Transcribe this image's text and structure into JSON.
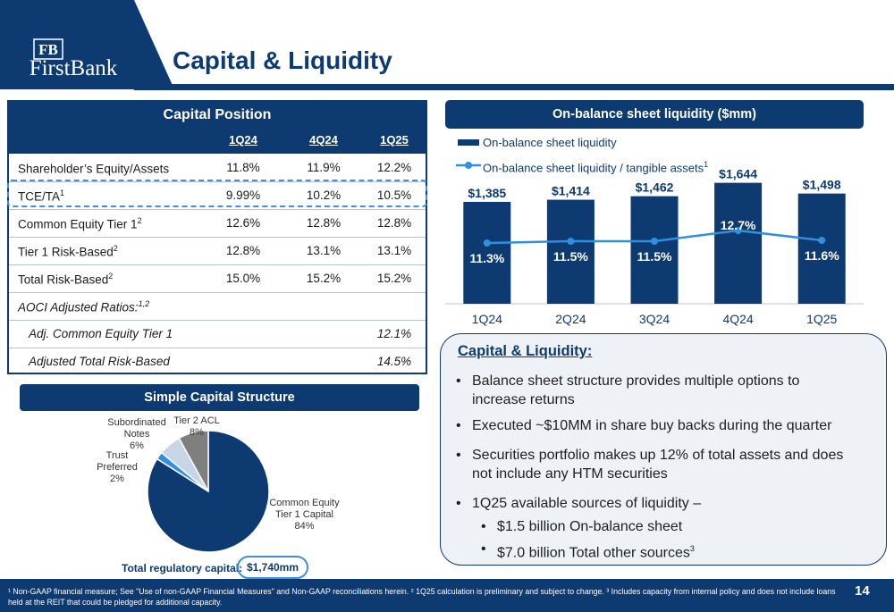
{
  "logo": {
    "monogram": "FB",
    "name": "FirstBank"
  },
  "title": "Capital & Liquidity",
  "capital_position": {
    "header": "Capital Position",
    "columns": [
      "1Q24",
      "4Q24",
      "1Q25"
    ],
    "rows": [
      {
        "label": "Shareholder’s Equity/Assets",
        "sup": "",
        "v": [
          "11.8%",
          "11.9%",
          "12.2%"
        ]
      },
      {
        "label": "TCE/TA",
        "sup": "1",
        "v": [
          "9.99%",
          "10.2%",
          "10.5%"
        ]
      },
      {
        "label": "Common Equity Tier 1",
        "sup": "2",
        "v": [
          "12.6%",
          "12.8%",
          "12.8%"
        ]
      },
      {
        "label": "Tier 1 Risk-Based",
        "sup": "2",
        "v": [
          "12.8%",
          "13.1%",
          "13.1%"
        ]
      },
      {
        "label": "Total Risk-Based",
        "sup": "2",
        "v": [
          "15.0%",
          "15.2%",
          "15.2%"
        ]
      },
      {
        "label": "AOCI Adjusted Ratios:",
        "sup": "1,2",
        "v": [
          "",
          "",
          ""
        ]
      },
      {
        "label": "Adj. Common Equity Tier 1",
        "sup": "",
        "v": [
          "",
          "",
          "12.1%"
        ]
      },
      {
        "label": "Adjusted Total Risk-Based",
        "sup": "",
        "v": [
          "",
          "",
          "14.5%"
        ]
      }
    ]
  },
  "simple_capital": {
    "header": "Simple Capital Structure",
    "slices": [
      {
        "label": "Common Equity Tier 1 Capital",
        "pct": "84%",
        "value": 84,
        "color": "#0d3a70"
      },
      {
        "label": "Trust Preferred",
        "pct": "2%",
        "value": 2,
        "color": "#2f8fe0"
      },
      {
        "label": "Subordinated Notes",
        "pct": "6%",
        "value": 6,
        "color": "#c9d5e6"
      },
      {
        "label": "Tier 2 ACL",
        "pct": "8%",
        "value": 8,
        "color": "#7f7f7f"
      }
    ],
    "total_label": "Total regulatory capital:",
    "total_value": "$1,740mm"
  },
  "chart_data": {
    "type": "bar",
    "title": "On-balance sheet liquidity ($mm)",
    "categories": [
      "1Q24",
      "2Q24",
      "3Q24",
      "4Q24",
      "1Q25"
    ],
    "series": [
      {
        "name": "On-balance sheet liquidity",
        "values": [
          1385,
          1414,
          1462,
          1644,
          1498
        ],
        "labels": [
          "$1,385",
          "$1,414",
          "$1,462",
          "$1,644",
          "$1,498"
        ],
        "color": "#0d3a70"
      },
      {
        "name": "On-balance sheet liquidity / tangible assets",
        "sup": "1",
        "values": [
          11.3,
          11.5,
          11.5,
          12.7,
          11.6
        ],
        "labels": [
          "11.3%",
          "11.5%",
          "11.5%",
          "12.7%",
          "11.6%"
        ],
        "color": "#2f8fe0"
      }
    ]
  },
  "capital_liquidity": {
    "title": "Capital & Liquidity:",
    "bullets": [
      "Balance sheet structure provides multiple options to increase returns",
      "Executed ~$10MM in share buy backs during the quarter",
      "Securities portfolio makes up 12% of total assets and does not include any HTM securities",
      "1Q25 available sources of liquidity –"
    ],
    "sub_bullets": [
      {
        "text": "$1.5 billion On-balance sheet",
        "sup": ""
      },
      {
        "text": "$7.0 billion Total other sources",
        "sup": "3"
      }
    ]
  },
  "footnote": "¹ Non-GAAP financial measure; See \"Use of non-GAAP Financial Measures\" and Non-GAAP reconciliations herein. ² 1Q25 calculation is preliminary and subject to change. ³ Includes capacity from internal policy and does not include loans held at the REIT that could be pledged for additional capacity.",
  "page_number": "14"
}
